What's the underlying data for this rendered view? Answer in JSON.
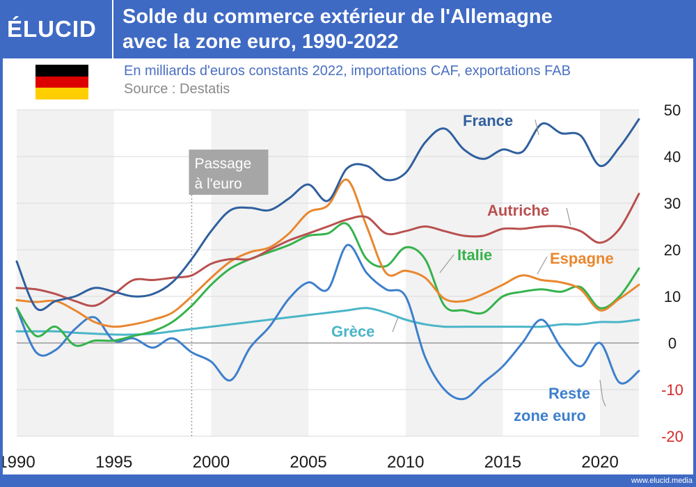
{
  "header": {
    "logo": "ÉLUCID",
    "title_line1": "Solde du commerce extérieur de l'Allemagne",
    "title_line2": "avec la zone euro, 1990-2022"
  },
  "subtitle": "En milliards d'euros constants 2022, importations CAF, exportations FAB",
  "source": "Source : Destatis",
  "footer": "www.elucid.media",
  "colors": {
    "france": "#2f5f9e",
    "autriche": "#b8504f",
    "espagne": "#e9872e",
    "italie": "#35b24b",
    "grece": "#4ab5c8",
    "reste": "#3d7fcc",
    "flag_black": "#000000",
    "flag_red": "#dd0000",
    "flag_gold": "#ffce00",
    "negative_tick": "#d62828"
  },
  "chart_data": {
    "type": "line",
    "xlim": [
      1990,
      2022
    ],
    "ylim": [
      -20,
      50
    ],
    "x_ticks": [
      1990,
      1995,
      2000,
      2005,
      2010,
      2015,
      2020
    ],
    "y_ticks": [
      50,
      40,
      30,
      20,
      10,
      0,
      -10,
      -20
    ],
    "y_axis_side": "right",
    "grid": "horizontal",
    "annotation": {
      "x": 1999,
      "line1": "Passage",
      "line2": "à l'euro"
    },
    "x": [
      1990,
      1991,
      1992,
      1993,
      1994,
      1995,
      1996,
      1997,
      1998,
      1999,
      2000,
      2001,
      2002,
      2003,
      2004,
      2005,
      2006,
      2007,
      2008,
      2009,
      2010,
      2011,
      2012,
      2013,
      2014,
      2015,
      2016,
      2017,
      2018,
      2019,
      2020,
      2021,
      2022
    ],
    "series": [
      {
        "key": "france",
        "name": "France",
        "values": [
          17.5,
          7.5,
          9,
          10,
          11.8,
          11,
          10,
          10.5,
          13,
          18,
          24,
          28.5,
          29,
          28.5,
          31,
          34,
          30.5,
          37.5,
          38,
          35,
          36.5,
          43,
          46,
          41.5,
          39.5,
          41.5,
          41,
          47,
          45,
          44.5,
          38,
          42,
          48
        ]
      },
      {
        "key": "autriche",
        "name": "Autriche",
        "values": [
          11.8,
          11.5,
          10.5,
          9,
          8,
          10.5,
          13.5,
          13.5,
          14,
          14.5,
          17,
          18,
          18,
          20,
          22,
          23.5,
          25,
          26.5,
          27,
          23.5,
          24,
          25,
          24,
          23,
          23,
          24.5,
          24.5,
          25,
          25,
          24,
          21.5,
          24.5,
          32
        ]
      },
      {
        "key": "espagne",
        "name": "Espagne",
        "values": [
          9.2,
          8.8,
          9,
          7,
          4.5,
          3.5,
          4,
          5,
          6.5,
          10,
          14,
          17.5,
          19.5,
          20.5,
          23.5,
          28,
          29.5,
          35,
          25,
          15,
          15.5,
          14,
          9.5,
          9,
          10.5,
          12.5,
          14.5,
          13.5,
          13,
          11.5,
          7,
          9.5,
          12.5
        ]
      },
      {
        "key": "italie",
        "name": "Italie",
        "values": [
          7.5,
          1.5,
          3.5,
          -0.5,
          0.5,
          0.5,
          1.5,
          2.5,
          4.5,
          8,
          12.5,
          16,
          18,
          19.5,
          21,
          23,
          23.5,
          25.5,
          18,
          16.5,
          20.5,
          18,
          8,
          7,
          6.5,
          10,
          11,
          11.5,
          11,
          12,
          7.5,
          10,
          16
        ]
      },
      {
        "key": "grece",
        "name": "Grèce",
        "values": [
          2.5,
          2.5,
          2.5,
          2.2,
          2,
          1.8,
          1.8,
          2,
          2.5,
          3,
          3.5,
          4,
          4.5,
          5,
          5.5,
          6,
          6.5,
          7,
          7.5,
          6.5,
          5,
          4,
          3.5,
          3.5,
          3.5,
          3.5,
          3.5,
          3.5,
          4,
          4,
          4.5,
          4.5,
          5
        ]
      },
      {
        "key": "reste",
        "name": "Reste zone euro",
        "label_line1": "Reste",
        "label_line2": "zone euro",
        "values": [
          7.5,
          -2,
          -1.5,
          3,
          5.5,
          0.5,
          1,
          -1,
          1,
          -2,
          -4,
          -8,
          -1,
          3.5,
          9.5,
          13,
          11.5,
          21,
          15,
          11.5,
          10,
          -3,
          -10,
          -12,
          -8.5,
          -5,
          0,
          5,
          -1,
          -5,
          0,
          -8.5,
          -6
        ]
      }
    ]
  }
}
